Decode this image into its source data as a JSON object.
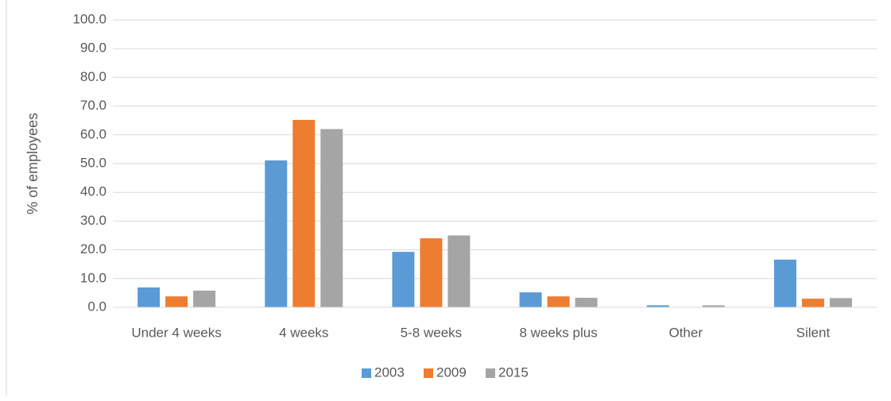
{
  "chart_data": {
    "type": "bar",
    "y_label": "% of employees",
    "categories": [
      "Under 4 weeks",
      "4 weeks",
      "5-8 weeks",
      "8 weeks plus",
      "Other",
      "Silent"
    ],
    "series": [
      {
        "name": "2003",
        "color": "#5b9bd5",
        "values": [
          6.9,
          51.1,
          19.3,
          5.2,
          0.7,
          16.6
        ]
      },
      {
        "name": "2009",
        "color": "#ed7d31",
        "values": [
          3.8,
          65.2,
          24.0,
          3.8,
          0,
          3.0
        ]
      },
      {
        "name": "2015",
        "color": "#a5a5a5",
        "values": [
          5.8,
          62.0,
          25.0,
          3.3,
          0.7,
          3.2
        ]
      }
    ],
    "ylim": [
      0,
      100
    ],
    "yticks": [
      {
        "value": 0,
        "label": "0.0"
      },
      {
        "value": 10,
        "label": "10.0"
      },
      {
        "value": 20,
        "label": "20.0"
      },
      {
        "value": 30,
        "label": "30.0"
      },
      {
        "value": 40,
        "label": "40.0"
      },
      {
        "value": 50,
        "label": "50.0"
      },
      {
        "value": 60,
        "label": "60.0"
      },
      {
        "value": 70,
        "label": "70.0"
      },
      {
        "value": 80,
        "label": "80.0"
      },
      {
        "value": 90,
        "label": "90.0"
      },
      {
        "value": 100,
        "label": "100.0"
      }
    ],
    "grid": true,
    "legend": "bottom"
  }
}
